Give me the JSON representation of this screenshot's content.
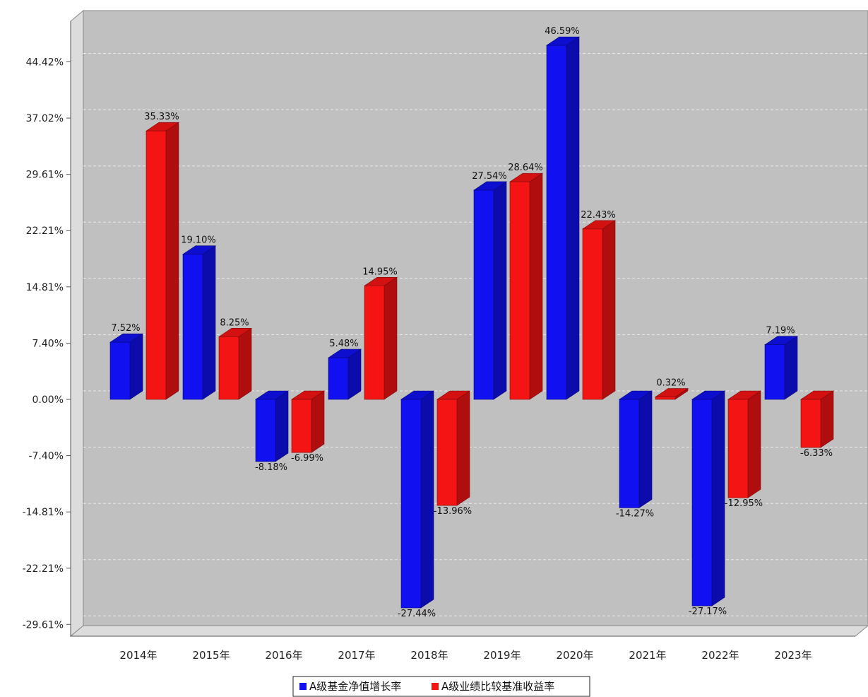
{
  "chart_data": {
    "type": "bar",
    "categories": [
      "2014年",
      "2015年",
      "2016年",
      "2017年",
      "2018年",
      "2019年",
      "2020年",
      "2021年",
      "2022年",
      "2023年"
    ],
    "series": [
      {
        "name": "A级基金净值增长率",
        "color": "#1010f0",
        "values": [
          7.52,
          19.1,
          -8.18,
          5.48,
          -27.44,
          27.54,
          46.59,
          -14.27,
          -27.17,
          7.19
        ],
        "labels": [
          "7.52%",
          "19.10%",
          "-8.18%",
          "5.48%",
          "-27.44%",
          "27.54%",
          "46.59%",
          "-14.27%",
          "-27.17%",
          "7.19%"
        ]
      },
      {
        "name": "A级业绩比较基准收益率",
        "color": "#f51414",
        "values": [
          35.33,
          8.25,
          -6.99,
          14.95,
          -13.96,
          28.64,
          22.43,
          0.32,
          -12.95,
          -6.33
        ],
        "labels": [
          "35.33%",
          "8.25%",
          "-6.99%",
          "14.95%",
          "-13.96%",
          "28.64%",
          "22.43%",
          "0.32%",
          "-12.95%",
          "-6.33%"
        ]
      }
    ],
    "yticks": [
      44.42,
      37.02,
      29.61,
      22.21,
      14.81,
      7.4,
      0.0,
      -7.4,
      -14.81,
      -22.21,
      -29.61
    ],
    "ytick_labels": [
      "44.42%",
      "37.02%",
      "29.61%",
      "22.21%",
      "14.81%",
      "7.40%",
      "0.00%",
      "-7.40%",
      "-14.81%",
      "-22.21%",
      "-29.61%"
    ],
    "ylim": [
      -29.61,
      50
    ],
    "grid": true,
    "legend_position": "bottom-center",
    "background": "#c0c0c0"
  }
}
